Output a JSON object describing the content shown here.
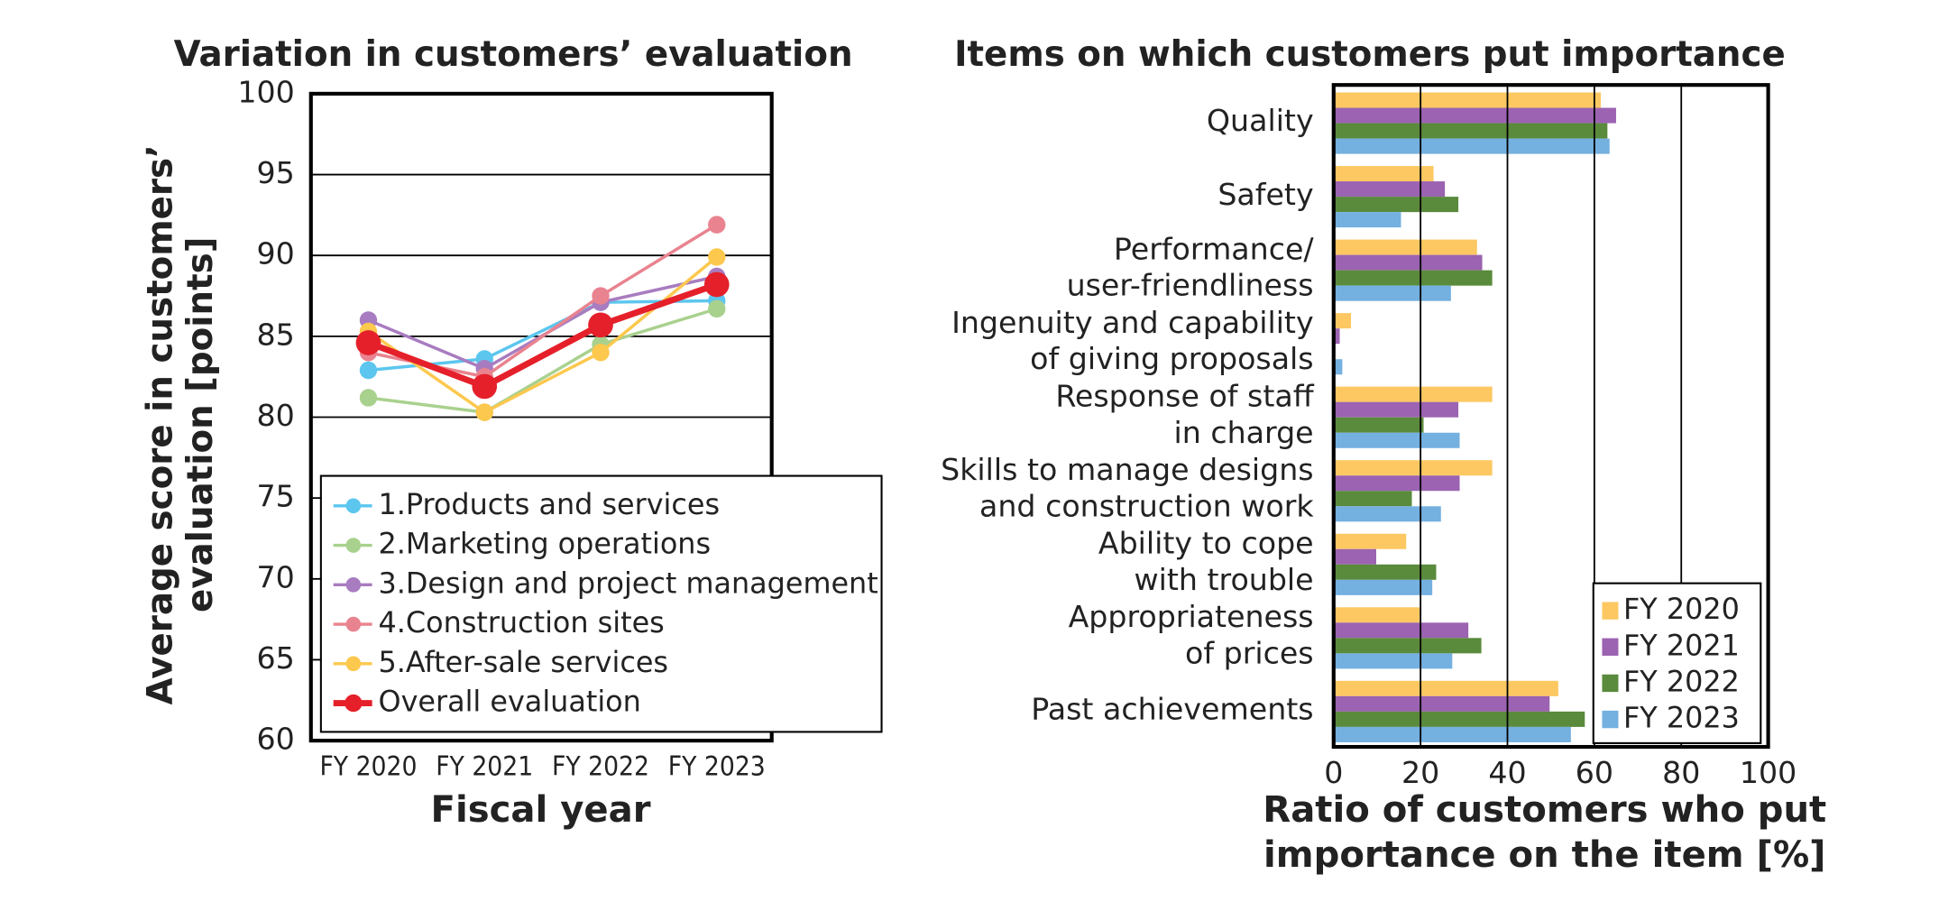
{
  "chart_data": [
    {
      "type": "line",
      "title": "Variation in customers’ evaluation",
      "xlabel": "Fiscal year",
      "ylabel": [
        "Average score in customers’",
        "evaluation [points]"
      ],
      "categories": [
        "FY 2020",
        "FY 2021",
        "FY 2022",
        "FY 2023"
      ],
      "ylim": [
        60,
        100
      ],
      "yticks": [
        60,
        65,
        70,
        75,
        80,
        85,
        90,
        95,
        100
      ],
      "grid": true,
      "legend": "lower right",
      "series": [
        {
          "name": "1.Products and services",
          "color": "#5cc6ee",
          "values": [
            82.9,
            83.6,
            87.1,
            87.2
          ]
        },
        {
          "name": "2.Marketing operations",
          "color": "#a9d18e",
          "values": [
            81.2,
            80.3,
            84.5,
            86.7
          ]
        },
        {
          "name": "3.Design and project management",
          "color": "#a87cc0",
          "values": [
            86.0,
            83.0,
            87.1,
            88.7
          ]
        },
        {
          "name": "4.Construction sites",
          "color": "#e9838f",
          "values": [
            84.0,
            82.5,
            87.5,
            91.9
          ]
        },
        {
          "name": "5.After-sale services",
          "color": "#fcc84e",
          "values": [
            85.3,
            80.3,
            84.0,
            89.9
          ]
        },
        {
          "name": "Overall evaluation",
          "color": "#e5202a",
          "values": [
            84.6,
            81.9,
            85.7,
            88.2
          ]
        }
      ]
    },
    {
      "type": "hbar",
      "title": "Items on which customers put importance",
      "xlabel": [
        "Ratio of customers who put",
        "importance on the item [%]"
      ],
      "categories": [
        [
          "Quality"
        ],
        [
          "Safety"
        ],
        [
          "Performance/",
          "user-friendliness"
        ],
        [
          "Ingenuity and capability",
          "of giving proposals"
        ],
        [
          "Response of staff",
          "in charge"
        ],
        [
          "Skills to manage designs",
          "and construction work"
        ],
        [
          "Ability to cope",
          "with trouble"
        ],
        [
          "Appropriateness",
          "of prices"
        ],
        [
          "Past achievements"
        ]
      ],
      "xlim": [
        0,
        100
      ],
      "xticks": [
        0,
        20,
        40,
        60,
        80,
        100
      ],
      "grid": true,
      "legend": "lower right",
      "series": [
        {
          "name": "FY 2020",
          "color": "#fdc862",
          "values": [
            61.5,
            23,
            33,
            4,
            36.5,
            36.5,
            16.7,
            19.8,
            51.7
          ]
        },
        {
          "name": "FY 2021",
          "color": "#9b63b1",
          "values": [
            65,
            25.6,
            34.2,
            1.4,
            28.7,
            29,
            9.8,
            31,
            49.7
          ]
        },
        {
          "name": "FY 2022",
          "color": "#5a8a3c",
          "values": [
            63,
            28.7,
            36.5,
            0,
            20.7,
            18,
            23.6,
            34,
            57.8
          ]
        },
        {
          "name": "FY 2023",
          "color": "#74b0e0",
          "values": [
            63.5,
            15.5,
            27,
            2,
            29,
            24.7,
            22.7,
            27.3,
            54.6
          ]
        }
      ]
    }
  ]
}
